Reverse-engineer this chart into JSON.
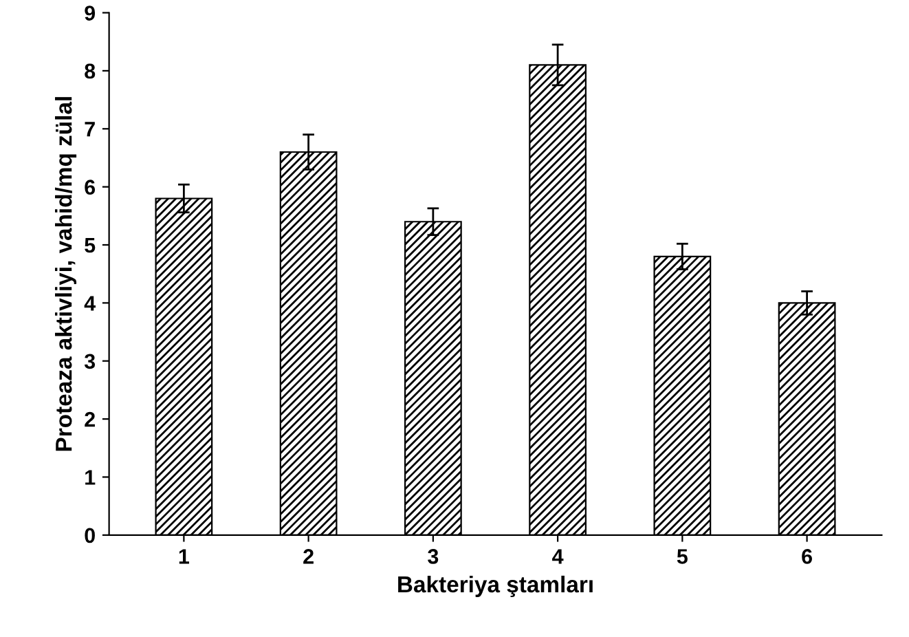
{
  "chart_data": {
    "type": "bar",
    "xlabel": "Bakteriya ştamları",
    "ylabel": "Proteaza aktivliyi, vahid/mq zülal",
    "categories": [
      "1",
      "2",
      "3",
      "4",
      "5",
      "6"
    ],
    "series": [
      {
        "color": "#000000",
        "values": [
          5.8,
          6.6,
          5.4,
          8.1,
          4.8,
          4.0
        ],
        "errors": [
          0.24,
          0.3,
          0.23,
          0.35,
          0.22,
          0.2
        ]
      }
    ],
    "ylim": [
      0,
      9
    ],
    "yticks": [
      0,
      1,
      2,
      3,
      4,
      5,
      6,
      7,
      8,
      9
    ],
    "grid": false,
    "legend": false
  }
}
